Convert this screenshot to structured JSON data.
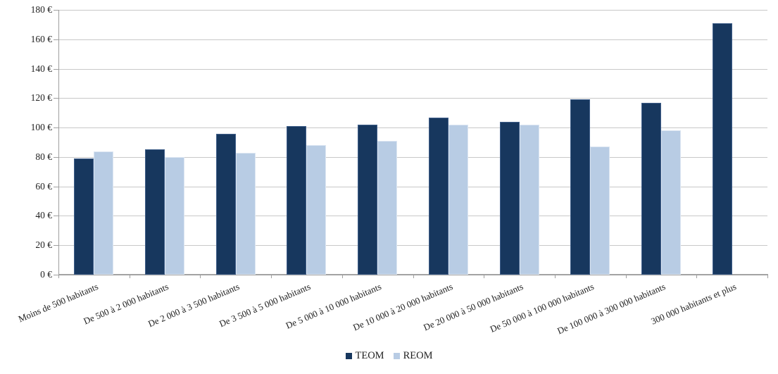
{
  "chart_data": {
    "type": "bar",
    "title": "",
    "xlabel": "",
    "ylabel": "",
    "categories": [
      "Moins de 500 habitants",
      "De 500 à 2 000 habitants",
      "De 2 000 à 3 500 habitants",
      "De 3 500 à 5 000 habitants",
      "De 5 000 à 10 000 habitants",
      "De 10 000 à 20 000 habitants",
      "De 20 000 à 50 000 habitants",
      "De 50 000 à 100 000 habitants",
      "De 100 000 à 300 000 habitants",
      "300 000 habitants et plus"
    ],
    "series": [
      {
        "name": "TEOM",
        "color": "#17375E",
        "border_color": "#41608B",
        "values": [
          79,
          85,
          96,
          101,
          102,
          107,
          104,
          119,
          117,
          171
        ]
      },
      {
        "name": "REOM",
        "color": "#B8CCE4",
        "border_color": "#DCE6F2",
        "values": [
          84,
          80,
          83,
          88,
          91,
          102,
          102,
          87,
          98,
          null
        ]
      }
    ],
    "ylim": [
      0,
      180
    ],
    "ytick_step": 20,
    "y_tick_labels": [
      "0 €",
      "20 €",
      "40 €",
      "60 €",
      "80 €",
      "100 €",
      "120 €",
      "140 €",
      "160 €",
      "180 €"
    ],
    "currency": "€",
    "grid": true,
    "legend_position": "bottom"
  },
  "colors": {
    "gridline": "#C8C8C8",
    "axis": "#9F9F9F",
    "text": "#1F1F1F",
    "background": "#FFFFFF"
  }
}
